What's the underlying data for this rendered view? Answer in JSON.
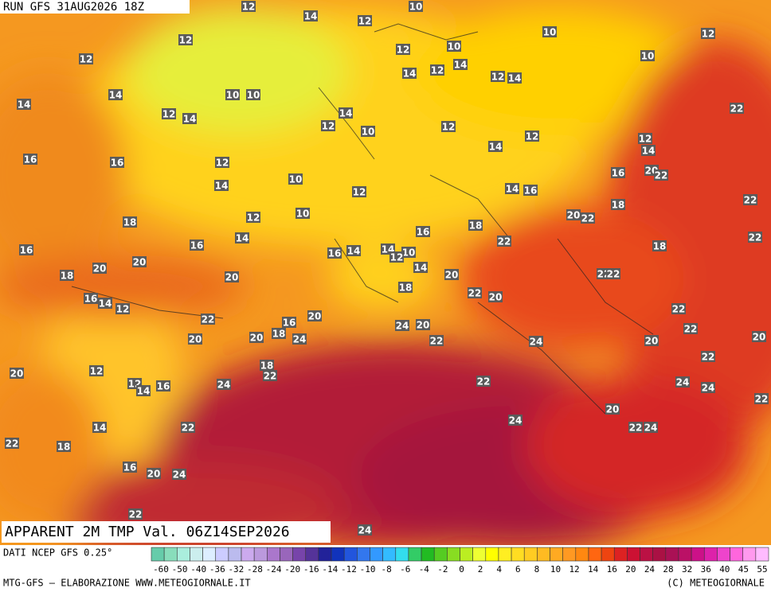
{
  "header": {
    "run": "RUN GFS 31AUG2026 18Z",
    "title": "APPARENT 2M TMP Val. 06Z14SEP2026"
  },
  "footer": {
    "source": "DATI NCEP GFS 0.25°",
    "credit": "MTG-GFS — ELABORAZIONE WWW.METEOGIORNALE.IT",
    "copyright": "(C) METEOGIORNALE"
  },
  "colorbar": {
    "colors": [
      "#66ccaa",
      "#88ddbb",
      "#aaeedd",
      "#cceeee",
      "#ddeeff",
      "#ccccff",
      "#bbbbee",
      "#ccaaee",
      "#bb99dd",
      "#aa77cc",
      "#9966bb",
      "#7744aa",
      "#553399",
      "#222299",
      "#1133bb",
      "#2255dd",
      "#3377ee",
      "#3399ff",
      "#33bbff",
      "#33ddee",
      "#33cc66",
      "#22bb22",
      "#55cc22",
      "#88dd22",
      "#bbee22",
      "#eeff33",
      "#ffff00",
      "#ffee22",
      "#ffdd22",
      "#ffcc22",
      "#ffbb22",
      "#ffaa22",
      "#ff9922",
      "#ff8811",
      "#ff6611",
      "#ee4411",
      "#dd2222",
      "#cc1133",
      "#bb1144",
      "#aa1144",
      "#aa1155",
      "#bb1166",
      "#cc1188",
      "#dd22aa",
      "#ee44cc",
      "#ff66dd",
      "#ff99ee",
      "#ffbbff"
    ],
    "ticks": [
      -60,
      -50,
      -40,
      -36,
      -32,
      -28,
      -24,
      -20,
      -16,
      -14,
      -12,
      -10,
      -8,
      -6,
      -4,
      -2,
      0,
      2,
      4,
      6,
      8,
      10,
      12,
      14,
      16,
      20,
      24,
      28,
      32,
      36,
      40,
      45,
      55
    ]
  },
  "map_labels": [
    12,
    14,
    10,
    12,
    12,
    12,
    12,
    10,
    14,
    12,
    14,
    10,
    12,
    10,
    12,
    14,
    14,
    14,
    10,
    10,
    12,
    14,
    14,
    12,
    10,
    12,
    12,
    14,
    12,
    14,
    22,
    16,
    16,
    12,
    10,
    14,
    12,
    16,
    20,
    22,
    14,
    16,
    22,
    10,
    12,
    18,
    20,
    22,
    18,
    18,
    14,
    16,
    22,
    16,
    20,
    16,
    22,
    18,
    16,
    14,
    14,
    10,
    12,
    14,
    20,
    18,
    20,
    20,
    22,
    22,
    18,
    16,
    14,
    12,
    22,
    20,
    20,
    22,
    16,
    18,
    24,
    24,
    20,
    22,
    22,
    20,
    20,
    22,
    24,
    20,
    20,
    18,
    22,
    12,
    22,
    20,
    12,
    14,
    16,
    24,
    22,
    24,
    24,
    22,
    20,
    24,
    14,
    22,
    22,
    24,
    22,
    18,
    16,
    20,
    24,
    22,
    24
  ]
}
